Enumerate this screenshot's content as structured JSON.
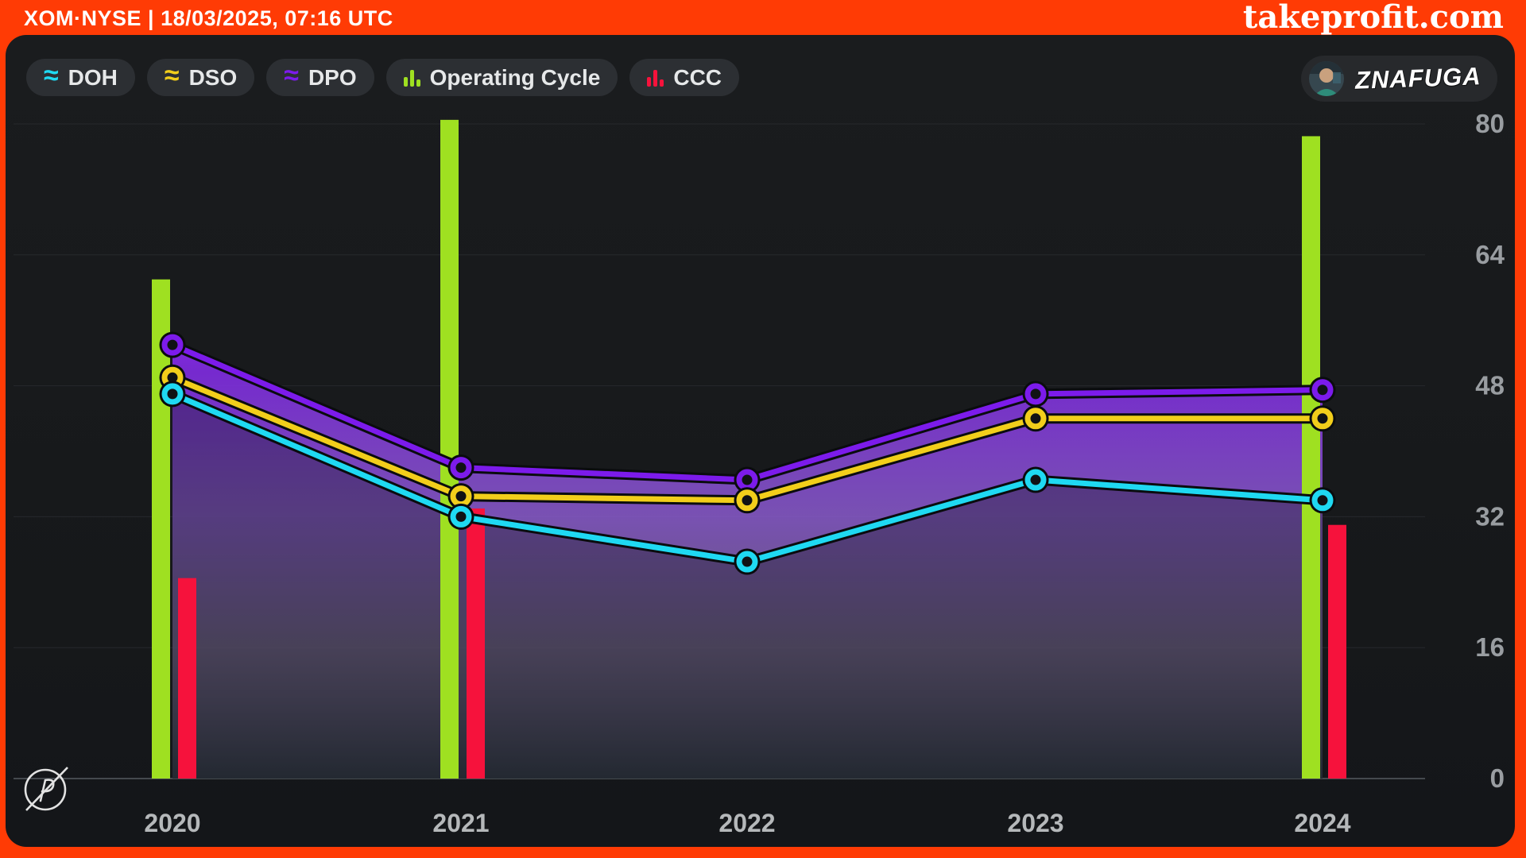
{
  "header": {
    "title": "XOM·NYSE | 18/03/2025, 07:16 UTC",
    "brand": "takeprofit.com",
    "accent_color": "#FF3B05"
  },
  "user": {
    "name": "ZNAFUGA"
  },
  "legend_labels": [
    "DOH",
    "DSO",
    "DPO",
    "Operating Cycle",
    "CCC"
  ],
  "chart_data": {
    "type": "combo",
    "categories": [
      "2020",
      "2021",
      "2022",
      "2023",
      "2024"
    ],
    "series": [
      {
        "name": "DOH",
        "type": "line",
        "color": "#1FD9F2",
        "values": [
          47,
          32,
          26.5,
          36.5,
          34
        ]
      },
      {
        "name": "DSO",
        "type": "line",
        "color": "#F2CE1B",
        "values": [
          49,
          34.5,
          34,
          44,
          44
        ]
      },
      {
        "name": "DPO",
        "type": "line",
        "color": "#7C1BEB",
        "values": [
          53,
          38,
          36.5,
          47,
          47.5
        ]
      },
      {
        "name": "Operating Cycle",
        "type": "bar",
        "color": "#9FE021",
        "values": [
          61,
          80.5,
          null,
          null,
          78.5
        ]
      },
      {
        "name": "CCC",
        "type": "bar",
        "color": "#F6123C",
        "values": [
          24.5,
          33,
          null,
          null,
          31
        ]
      }
    ],
    "title": "",
    "xlabel": "",
    "ylabel": "",
    "ylim": [
      0,
      80
    ],
    "yticks": [
      0,
      16,
      32,
      48,
      64,
      80
    ],
    "grid": true,
    "legend_position": "top-left",
    "axis_text_color": "#999DA1",
    "category_text_color": "#B5B8BA"
  }
}
